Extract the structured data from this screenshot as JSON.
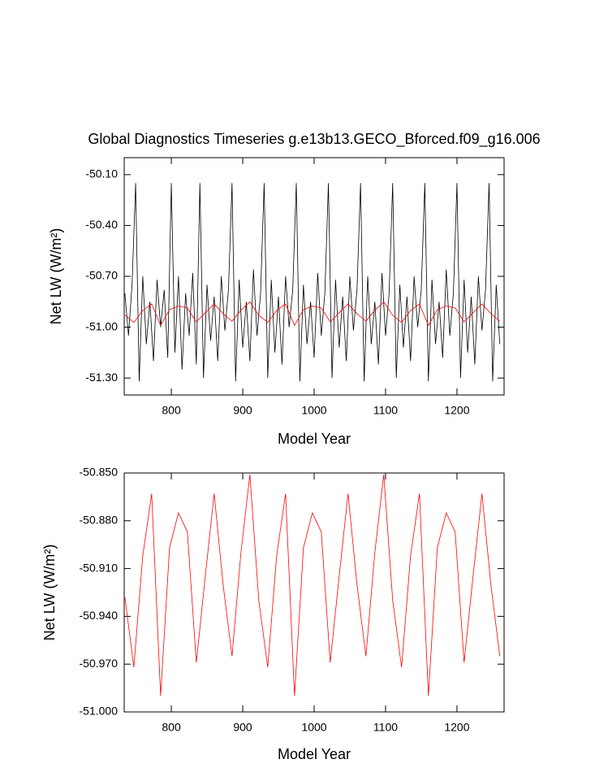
{
  "chart_data": [
    {
      "type": "line",
      "title": "Global Diagnostics Timeseries g.e13b13.GECO_Bforced.f09_g16.006",
      "xlabel": "Model Year",
      "ylabel": "Net LW (W/m²)",
      "xlim": [
        734,
        1266
      ],
      "xticks": [
        800,
        900,
        1000,
        1100,
        1200
      ],
      "ylim": [
        -51.4,
        -50.0
      ],
      "yticks": [
        {
          "value": -50.1,
          "label": "-50.10"
        },
        {
          "value": -50.4,
          "label": "-50.40"
        },
        {
          "value": -50.7,
          "label": "-50.70"
        },
        {
          "value": -51.0,
          "label": "-51.00"
        },
        {
          "value": -51.3,
          "label": "-51.30"
        }
      ],
      "series": [
        {
          "color": "#000000",
          "x": [
            735,
            740,
            745,
            750,
            755,
            760,
            765,
            770,
            775,
            780,
            785,
            790,
            795,
            800,
            805,
            810,
            815,
            820,
            825,
            830,
            835,
            840,
            845,
            850,
            855,
            860,
            865,
            870,
            875,
            880,
            885,
            890,
            895,
            900,
            905,
            910,
            915,
            920,
            925,
            930,
            935,
            940,
            945,
            950,
            955,
            960,
            965,
            970,
            975,
            980,
            985,
            990,
            995,
            1000,
            1005,
            1010,
            1015,
            1020,
            1025,
            1030,
            1035,
            1040,
            1045,
            1050,
            1055,
            1060,
            1065,
            1070,
            1075,
            1080,
            1085,
            1090,
            1095,
            1100,
            1105,
            1110,
            1115,
            1120,
            1125,
            1130,
            1135,
            1140,
            1145,
            1150,
            1155,
            1160,
            1165,
            1170,
            1175,
            1180,
            1185,
            1190,
            1195,
            1200,
            1205,
            1210,
            1215,
            1220,
            1225,
            1230,
            1235,
            1240,
            1245,
            1250,
            1255,
            1260
          ],
          "values": [
            -50.8,
            -51.05,
            -50.75,
            -50.15,
            -51.32,
            -50.7,
            -51.1,
            -50.85,
            -51.2,
            -50.72,
            -51.0,
            -50.78,
            -51.18,
            -50.15,
            -51.15,
            -50.7,
            -51.25,
            -50.8,
            -51.05,
            -50.68,
            -51.22,
            -50.15,
            -51.3,
            -50.75,
            -51.08,
            -50.82,
            -51.2,
            -50.7,
            -51.02,
            -50.78,
            -50.15,
            -51.32,
            -50.72,
            -51.12,
            -50.85,
            -51.2,
            -50.66,
            -51.05,
            -50.8,
            -50.15,
            -51.3,
            -50.72,
            -51.15,
            -50.82,
            -51.22,
            -50.7,
            -51.0,
            -50.78,
            -50.15,
            -51.32,
            -50.75,
            -51.1,
            -50.85,
            -51.18,
            -50.68,
            -51.05,
            -50.8,
            -50.15,
            -51.3,
            -50.72,
            -51.12,
            -50.82,
            -51.2,
            -50.7,
            -51.02,
            -50.78,
            -50.15,
            -51.32,
            -50.7,
            -51.1,
            -50.85,
            -51.22,
            -50.68,
            -51.05,
            -50.8,
            -50.15,
            -51.3,
            -50.75,
            -51.12,
            -50.82,
            -51.2,
            -50.7,
            -51.0,
            -50.78,
            -50.15,
            -51.32,
            -50.72,
            -51.1,
            -50.85,
            -51.18,
            -50.66,
            -51.05,
            -50.8,
            -50.15,
            -51.3,
            -50.72,
            -51.15,
            -50.82,
            -51.22,
            -50.7,
            -51.02,
            -50.78,
            -50.15,
            -51.32,
            -50.75,
            -51.1
          ]
        },
        {
          "color": "#ff0000",
          "x": [
            735,
            747.5,
            760,
            772.5,
            785,
            797.5,
            810,
            822.5,
            835,
            847.5,
            860,
            872.5,
            885,
            897.5,
            910,
            922.5,
            935,
            947.5,
            960,
            972.5,
            985,
            997.5,
            1010,
            1022.5,
            1035,
            1047.5,
            1060,
            1072.5,
            1085,
            1097.5,
            1110,
            1122.5,
            1135,
            1147.5,
            1160,
            1172.5,
            1185,
            1197.5,
            1210,
            1222.5,
            1235,
            1247.5,
            1260
          ],
          "values": [
            -50.928,
            -50.972,
            -50.902,
            -50.863,
            -50.99,
            -50.897,
            -50.875,
            -50.887,
            -50.969,
            -50.915,
            -50.863,
            -50.92,
            -50.965,
            -50.9,
            -50.851,
            -50.93,
            -50.972,
            -50.902,
            -50.863,
            -50.99,
            -50.897,
            -50.875,
            -50.887,
            -50.969,
            -50.915,
            -50.863,
            -50.92,
            -50.965,
            -50.9,
            -50.851,
            -50.93,
            -50.972,
            -50.902,
            -50.863,
            -50.99,
            -50.897,
            -50.875,
            -50.887,
            -50.969,
            -50.915,
            -50.863,
            -50.92,
            -50.965
          ]
        }
      ]
    },
    {
      "type": "line",
      "xlabel": "Model Year",
      "ylabel": "Net LW (W/m²)",
      "xlim": [
        734,
        1266
      ],
      "xticks": [
        800,
        900,
        1000,
        1100,
        1200
      ],
      "ylim": [
        -51.0,
        -50.85
      ],
      "yticks": [
        {
          "value": -50.85,
          "label": "-50.850"
        },
        {
          "value": -50.88,
          "label": "-50.880"
        },
        {
          "value": -50.91,
          "label": "-50.910"
        },
        {
          "value": -50.94,
          "label": "-50.940"
        },
        {
          "value": -50.97,
          "label": "-50.970"
        },
        {
          "value": -51.0,
          "label": "-51.000"
        }
      ],
      "series": [
        {
          "color": "#ff0000",
          "x": [
            735,
            747.5,
            760,
            772.5,
            785,
            797.5,
            810,
            822.5,
            835,
            847.5,
            860,
            872.5,
            885,
            897.5,
            910,
            922.5,
            935,
            947.5,
            960,
            972.5,
            985,
            997.5,
            1010,
            1022.5,
            1035,
            1047.5,
            1060,
            1072.5,
            1085,
            1097.5,
            1110,
            1122.5,
            1135,
            1147.5,
            1160,
            1172.5,
            1185,
            1197.5,
            1210,
            1222.5,
            1235,
            1247.5,
            1260
          ],
          "values": [
            -50.928,
            -50.972,
            -50.902,
            -50.863,
            -50.99,
            -50.897,
            -50.875,
            -50.887,
            -50.969,
            -50.915,
            -50.863,
            -50.92,
            -50.965,
            -50.9,
            -50.851,
            -50.93,
            -50.972,
            -50.902,
            -50.863,
            -50.99,
            -50.897,
            -50.875,
            -50.887,
            -50.969,
            -50.915,
            -50.863,
            -50.92,
            -50.965,
            -50.9,
            -50.851,
            -50.93,
            -50.972,
            -50.902,
            -50.863,
            -50.99,
            -50.897,
            -50.875,
            -50.887,
            -50.969,
            -50.915,
            -50.863,
            -50.92,
            -50.965
          ]
        }
      ]
    }
  ]
}
